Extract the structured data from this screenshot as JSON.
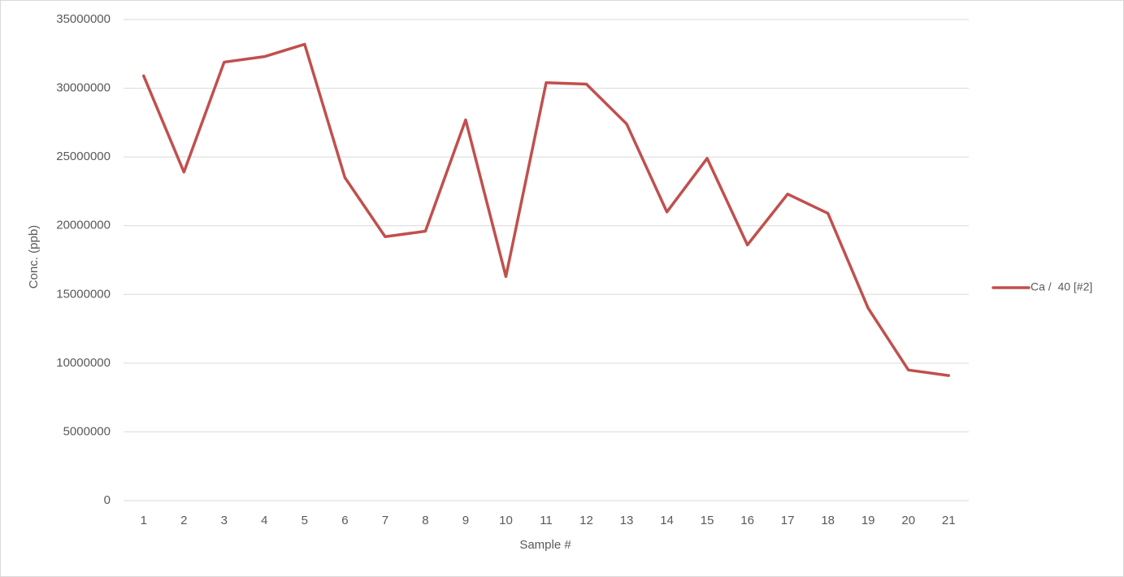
{
  "chart_data": {
    "type": "line",
    "x_label": "Sample #",
    "y_label": "Conc. (ppb)",
    "categories": [
      "1",
      "2",
      "3",
      "4",
      "5",
      "6",
      "7",
      "8",
      "9",
      "10",
      "11",
      "12",
      "13",
      "14",
      "15",
      "16",
      "17",
      "18",
      "19",
      "20",
      "21"
    ],
    "series": [
      {
        "name": "Ca /  40 [#2]",
        "color": "#c0504d",
        "values": [
          30900000,
          23900000,
          31900000,
          32300000,
          33200000,
          23500000,
          19200000,
          19600000,
          27700000,
          16300000,
          30400000,
          30300000,
          27400000,
          21000000,
          24900000,
          18600000,
          22300000,
          20900000,
          14000000,
          9500000,
          9100000
        ]
      }
    ],
    "ylim": [
      0,
      35000000
    ],
    "yticks": [
      0,
      5000000,
      10000000,
      15000000,
      20000000,
      25000000,
      30000000,
      35000000
    ],
    "grid": true,
    "legend": "right"
  }
}
